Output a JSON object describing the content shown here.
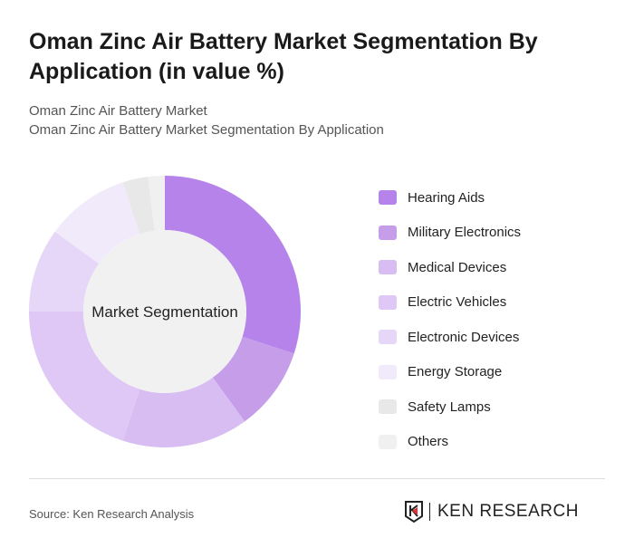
{
  "title": "Oman Zinc Air Battery Market Segmentation By Application (in value %)",
  "subtitle1": "Oman Zinc Air Battery Market",
  "subtitle2": "Oman Zinc Air Battery Market Segmentation By Application",
  "source": "Source: Ken Research Analysis",
  "logo_text": "KEN RESEARCH",
  "chart_data": {
    "type": "pie",
    "donut": true,
    "center_label": "Market Segmentation",
    "legend_position": "right",
    "categories": [
      "Hearing Aids",
      "Military Electronics",
      "Medical Devices",
      "Electric Vehicles",
      "Electronic Devices",
      "Energy Storage",
      "Safety Lamps",
      "Others"
    ],
    "values": [
      30,
      10,
      15,
      20,
      10,
      10,
      3,
      2
    ],
    "colors": [
      "#b583ea",
      "#c59de9",
      "#d8bdf3",
      "#dfc8f5",
      "#e6d6f8",
      "#f1eafb",
      "#e8e8e8",
      "#f0f0f0"
    ]
  }
}
